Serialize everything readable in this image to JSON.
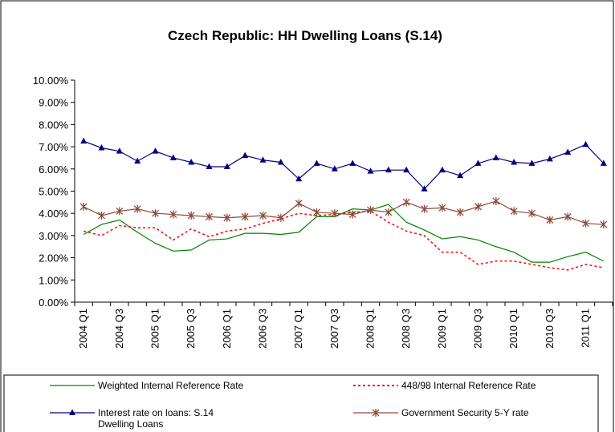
{
  "chart_data": {
    "type": "line",
    "title": "Czech Republic: HH Dwelling Loans (S.14)",
    "categories": [
      "2004 Q1",
      null,
      "2004 Q3",
      null,
      "2005 Q1",
      null,
      "2005 Q3",
      null,
      "2006 Q1",
      null,
      "2006 Q3",
      null,
      "2007 Q1",
      null,
      "2007 Q3",
      null,
      "2008 Q1",
      null,
      "2008 Q3",
      null,
      "2009 Q1",
      null,
      "2009 Q3",
      null,
      "2010 Q1",
      null,
      "2010 Q3",
      null,
      "2011 Q1",
      null
    ],
    "ylim": [
      0,
      10
    ],
    "yticks": [
      {
        "value": 0,
        "label": "0.00%"
      },
      {
        "value": 1,
        "label": "1.00%"
      },
      {
        "value": 2,
        "label": "2.00%"
      },
      {
        "value": 3,
        "label": "3.00%"
      },
      {
        "value": 4,
        "label": "4.00%"
      },
      {
        "value": 5,
        "label": "5.00%"
      },
      {
        "value": 6,
        "label": "6.00%"
      },
      {
        "value": 7,
        "label": "7.00%"
      },
      {
        "value": 8,
        "label": "8.00%"
      },
      {
        "value": 9,
        "label": "9.00%"
      },
      {
        "value": 10,
        "label": "10.00%"
      }
    ],
    "grid": false,
    "series": [
      {
        "name": "Weighted Internal Reference Rate",
        "color": "#008000",
        "dash": false,
        "marker": "none",
        "values": [
          3.05,
          3.5,
          3.7,
          3.15,
          2.65,
          2.3,
          2.35,
          2.8,
          2.85,
          3.1,
          3.1,
          3.05,
          3.15,
          3.85,
          3.85,
          4.2,
          4.15,
          4.4,
          3.6,
          3.25,
          2.85,
          2.95,
          2.8,
          2.5,
          2.25,
          1.8,
          1.8,
          2.05,
          2.25,
          1.85
        ]
      },
      {
        "name": "448/98 Internal Reference Rate",
        "color": "#ff0000",
        "dash": true,
        "marker": "none",
        "values": [
          3.2,
          3.0,
          3.45,
          3.35,
          3.35,
          2.8,
          3.3,
          2.95,
          3.2,
          3.3,
          3.55,
          3.75,
          4.0,
          3.9,
          3.95,
          4.05,
          4.1,
          3.6,
          3.2,
          3.0,
          2.25,
          2.25,
          1.7,
          1.85,
          1.85,
          1.7,
          1.55,
          1.45,
          1.7,
          1.55
        ]
      },
      {
        "name": "Interest rate on loans: S.14 Dwelling Loans",
        "color": "#000080",
        "dash": false,
        "marker": "triangle",
        "values": [
          7.25,
          6.95,
          6.8,
          6.35,
          6.8,
          6.5,
          6.3,
          6.1,
          6.1,
          6.6,
          6.4,
          6.3,
          5.55,
          6.25,
          6.0,
          6.25,
          5.9,
          5.95,
          5.95,
          5.1,
          5.95,
          5.7,
          6.25,
          6.5,
          6.3,
          6.25,
          6.45,
          6.75,
          7.1,
          6.25
        ]
      },
      {
        "name": "Government Security 5-Y rate",
        "color": "#8b4a3a",
        "dash": false,
        "marker": "star",
        "values": [
          4.3,
          3.9,
          4.1,
          4.2,
          4.0,
          3.95,
          3.9,
          3.85,
          3.8,
          3.85,
          3.9,
          3.8,
          4.45,
          4.05,
          4.0,
          3.95,
          4.15,
          4.05,
          4.5,
          4.2,
          4.25,
          4.05,
          4.3,
          4.55,
          4.1,
          4.0,
          3.7,
          3.85,
          3.55,
          3.5
        ]
      }
    ]
  }
}
